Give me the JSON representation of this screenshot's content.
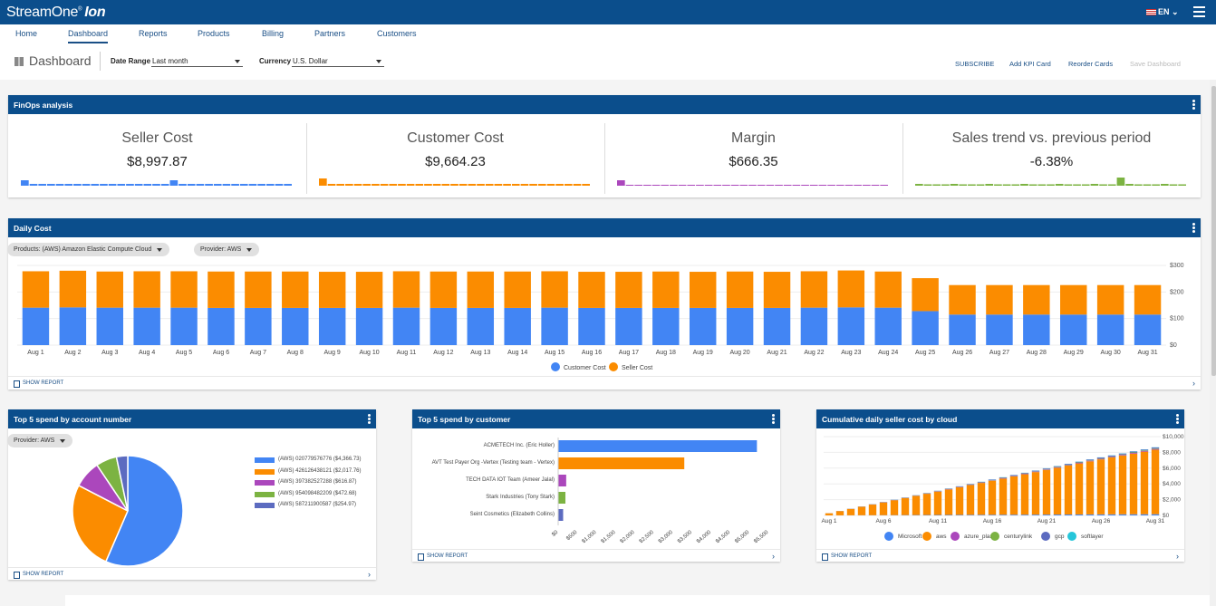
{
  "app": {
    "brand": "StreamOne",
    "brand_mark": "®",
    "brand_suffix": "Ion",
    "language": "EN"
  },
  "nav": {
    "items": [
      "Home",
      "Dashboard",
      "Reports",
      "Products",
      "Billing",
      "Partners",
      "Customers"
    ],
    "active": "Dashboard"
  },
  "toolbar": {
    "title": "Dashboard",
    "date_range_label": "Date Range",
    "date_range_value": "Last month",
    "currency_label": "Currency",
    "currency_value": "U.S. Dollar",
    "subscribe": "SUBSCRIBE",
    "add_kpi": "Add KPI Card",
    "reorder": "Reorder Cards",
    "save": "Save Dashboard"
  },
  "finops": {
    "title": "FinOps analysis",
    "kpis": [
      {
        "label": "Seller Cost",
        "value": "$8,997.87",
        "color": "#4285f4"
      },
      {
        "label": "Customer Cost",
        "value": "$9,664.23",
        "color": "#fb8c00"
      },
      {
        "label": "Margin",
        "value": "$666.35",
        "color": "#ab47bc"
      },
      {
        "label": "Sales trend vs. previous period",
        "value": "-6.38%",
        "color": "#7cb342"
      }
    ]
  },
  "daily": {
    "title": "Daily Cost",
    "filter_product": "Products: (AWS) Amazon Elastic Compute Cloud",
    "filter_provider": "Provider: AWS",
    "show_report": "SHOW REPORT"
  },
  "accounts": {
    "title": "Top 5 spend by account number",
    "filter": "Provider: AWS",
    "show_report": "SHOW REPORT"
  },
  "customers": {
    "title": "Top 5 spend by customer",
    "show_report": "SHOW REPORT"
  },
  "cumulative": {
    "title": "Cumulative daily seller cost by cloud",
    "show_report": "SHOW REPORT"
  },
  "chart_data": [
    {
      "type": "bar",
      "stacked": true,
      "title": "Daily Cost",
      "categories": [
        "Aug 1",
        "Aug 2",
        "Aug 3",
        "Aug 4",
        "Aug 5",
        "Aug 6",
        "Aug 7",
        "Aug 8",
        "Aug 9",
        "Aug 10",
        "Aug 11",
        "Aug 12",
        "Aug 13",
        "Aug 14",
        "Aug 15",
        "Aug 16",
        "Aug 17",
        "Aug 18",
        "Aug 19",
        "Aug 20",
        "Aug 21",
        "Aug 22",
        "Aug 23",
        "Aug 24",
        "Aug 25",
        "Aug 26",
        "Aug 27",
        "Aug 28",
        "Aug 29",
        "Aug 30",
        "Aug 31"
      ],
      "series": [
        {
          "name": "Customer Cost",
          "color": "#4285f4",
          "values": [
            141,
            142,
            141,
            141,
            141,
            140,
            140,
            140,
            140,
            140,
            141,
            140,
            140,
            140,
            141,
            140,
            140,
            140,
            140,
            140,
            140,
            141,
            142,
            141,
            128,
            115,
            115,
            115,
            115,
            115,
            115
          ]
        },
        {
          "name": "Seller Cost",
          "color": "#fb8c00",
          "values": [
            137,
            138,
            136,
            137,
            137,
            137,
            137,
            137,
            136,
            136,
            137,
            137,
            137,
            137,
            137,
            136,
            136,
            137,
            136,
            137,
            136,
            137,
            139,
            136,
            124,
            111,
            111,
            111,
            111,
            111,
            111
          ]
        }
      ],
      "yticks": [
        "$0",
        "$100",
        "$200",
        "$300"
      ],
      "ylim": [
        0,
        300
      ],
      "legend": "bottom"
    },
    {
      "type": "pie",
      "title": "Top 5 spend by account number",
      "labels": [
        "(AWS) 020779576776 ($4,366.73)",
        "(AWS) 426126438121 ($2,017.76)",
        "(AWS) 397382527288 ($616.87)",
        "(AWS) 954098482209 ($472.68)",
        "(AWS) 587211900587 ($254.97)"
      ],
      "values": [
        4366.73,
        2017.76,
        616.87,
        472.68,
        254.97
      ],
      "colors": [
        "#4285f4",
        "#fb8c00",
        "#ab47bc",
        "#7cb342",
        "#5c6bc0"
      ],
      "legend": "right"
    },
    {
      "type": "bar",
      "orientation": "horizontal",
      "title": "Top 5 spend by customer",
      "categories": [
        "ACMETECH Inc. (Eric Holler)",
        "AVT Test Payer Org -Vertex (Testing team - Vertex)",
        "TECH DATA IOT Team (Ameer Jalal)",
        "Stark Industries (Tony Stark)",
        "Seint Cosmetics (Elizabeth Collins)"
      ],
      "values": [
        5200,
        3300,
        210,
        190,
        130
      ],
      "colors": [
        "#4285f4",
        "#fb8c00",
        "#ab47bc",
        "#7cb342",
        "#5c6bc0"
      ],
      "xticks": [
        "$0",
        "$500",
        "$1,000",
        "$1,500",
        "$2,000",
        "$2,500",
        "$3,000",
        "$3,500",
        "$4,000",
        "$4,500",
        "$5,000",
        "$5,500"
      ],
      "xlim": [
        0,
        5500
      ]
    },
    {
      "type": "bar",
      "stacked": true,
      "title": "Cumulative daily seller cost by cloud",
      "categories": [
        "Aug 1",
        "Aug 2",
        "Aug 3",
        "Aug 4",
        "Aug 5",
        "Aug 6",
        "Aug 7",
        "Aug 8",
        "Aug 9",
        "Aug 10",
        "Aug 11",
        "Aug 12",
        "Aug 13",
        "Aug 14",
        "Aug 15",
        "Aug 16",
        "Aug 17",
        "Aug 18",
        "Aug 19",
        "Aug 20",
        "Aug 21",
        "Aug 22",
        "Aug 23",
        "Aug 24",
        "Aug 25",
        "Aug 26",
        "Aug 27",
        "Aug 28",
        "Aug 29",
        "Aug 30",
        "Aug 31"
      ],
      "xlabels": [
        "Aug 1",
        "Aug 6",
        "Aug 11",
        "Aug 16",
        "Aug 21",
        "Aug 26",
        "Aug 31"
      ],
      "series": [
        {
          "name": "Microsoft",
          "color": "#4285f4",
          "values": [
            5,
            10,
            15,
            20,
            25,
            30,
            35,
            40,
            45,
            50,
            55,
            60,
            65,
            70,
            75,
            80,
            85,
            90,
            95,
            100,
            105,
            110,
            115,
            120,
            125,
            130,
            135,
            140,
            145,
            150,
            155
          ]
        },
        {
          "name": "aws",
          "color": "#fb8c00",
          "values": [
            270,
            540,
            810,
            1080,
            1350,
            1620,
            1890,
            2160,
            2430,
            2700,
            2970,
            3240,
            3510,
            3780,
            4050,
            4320,
            4590,
            4860,
            5130,
            5400,
            5670,
            5940,
            6210,
            6480,
            6740,
            6980,
            7220,
            7460,
            7700,
            7940,
            8180
          ]
        },
        {
          "name": "azure_plan",
          "color": "#ab47bc",
          "values": [
            3,
            6,
            9,
            12,
            15,
            18,
            21,
            24,
            27,
            30,
            33,
            36,
            39,
            42,
            45,
            48,
            51,
            54,
            57,
            60,
            63,
            66,
            69,
            72,
            75,
            78,
            81,
            84,
            87,
            90,
            93
          ]
        },
        {
          "name": "centurylink",
          "color": "#7cb342",
          "values": [
            2,
            4,
            6,
            8,
            10,
            12,
            14,
            16,
            18,
            20,
            22,
            24,
            26,
            28,
            30,
            32,
            34,
            36,
            38,
            40,
            42,
            44,
            46,
            48,
            50,
            52,
            54,
            56,
            58,
            60,
            62
          ]
        },
        {
          "name": "gcp",
          "color": "#5c6bc0",
          "values": [
            4,
            8,
            12,
            16,
            20,
            24,
            28,
            32,
            36,
            40,
            44,
            48,
            52,
            56,
            60,
            64,
            68,
            72,
            76,
            80,
            84,
            88,
            92,
            96,
            100,
            104,
            108,
            112,
            116,
            120,
            124
          ]
        },
        {
          "name": "softlayer",
          "color": "#26c6da",
          "values": [
            1,
            2,
            3,
            4,
            5,
            6,
            7,
            8,
            9,
            10,
            11,
            12,
            13,
            14,
            15,
            16,
            17,
            18,
            19,
            20,
            21,
            22,
            23,
            24,
            25,
            26,
            27,
            28,
            29,
            30,
            31
          ]
        }
      ],
      "yticks": [
        "$0",
        "$2,000",
        "$4,000",
        "$6,000",
        "$8,000",
        "$10,000"
      ],
      "ylim": [
        0,
        10000
      ],
      "legend": "bottom"
    }
  ]
}
